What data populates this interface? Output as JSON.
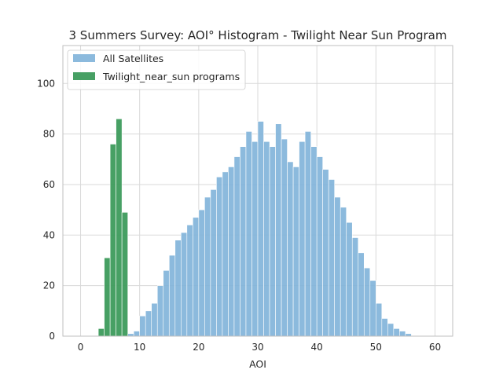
{
  "chart_data": {
    "type": "bar",
    "title": "3 Summers Survey: AOI° Histogram - Twilight Near Sun Program",
    "xlabel": "AOI",
    "ylabel": "",
    "xlim": [
      -3,
      63
    ],
    "ylim": [
      0,
      115
    ],
    "xticks": [
      "0",
      "10",
      "20",
      "30",
      "40",
      "50",
      "60"
    ],
    "xtick_values": [
      0,
      10,
      20,
      30,
      40,
      50,
      60
    ],
    "yticks": [
      "0",
      "20",
      "40",
      "60",
      "80",
      "100"
    ],
    "ytick_values": [
      0,
      20,
      40,
      60,
      80,
      100
    ],
    "grid": true,
    "legend_position": "top-left",
    "series": [
      {
        "name": "All Satellites",
        "color": "#7fb2d9",
        "bin_edges": [
          8,
          9,
          10,
          11,
          12,
          13,
          14,
          15,
          16,
          17,
          18,
          19,
          20,
          21,
          22,
          23,
          24,
          25,
          26,
          27,
          28,
          29,
          30,
          31,
          32,
          33,
          34,
          35,
          36,
          37,
          38,
          39,
          40,
          41,
          42,
          43,
          44,
          45,
          46,
          47,
          48,
          49,
          50,
          51,
          52,
          53,
          54,
          55,
          56,
          57,
          58,
          59,
          60,
          61
        ],
        "values": [
          1,
          2,
          8,
          10,
          13,
          20,
          26,
          32,
          38,
          41,
          44,
          47,
          50,
          55,
          58,
          63,
          65,
          67,
          71,
          75,
          81,
          77,
          85,
          77,
          75,
          84,
          78,
          69,
          67,
          77,
          81,
          75,
          71,
          66,
          62,
          55,
          51,
          45,
          39,
          33,
          27,
          22,
          13,
          7,
          5,
          3,
          2,
          1,
          0,
          0,
          0,
          0,
          0
        ]
      },
      {
        "name": "Twilight_near_sun programs",
        "color": "#3d9b5c",
        "bin_edges": [
          3,
          4,
          5,
          6,
          7,
          8,
          9
        ],
        "values": [
          3,
          31,
          76,
          86,
          49,
          0
        ]
      }
    ]
  }
}
